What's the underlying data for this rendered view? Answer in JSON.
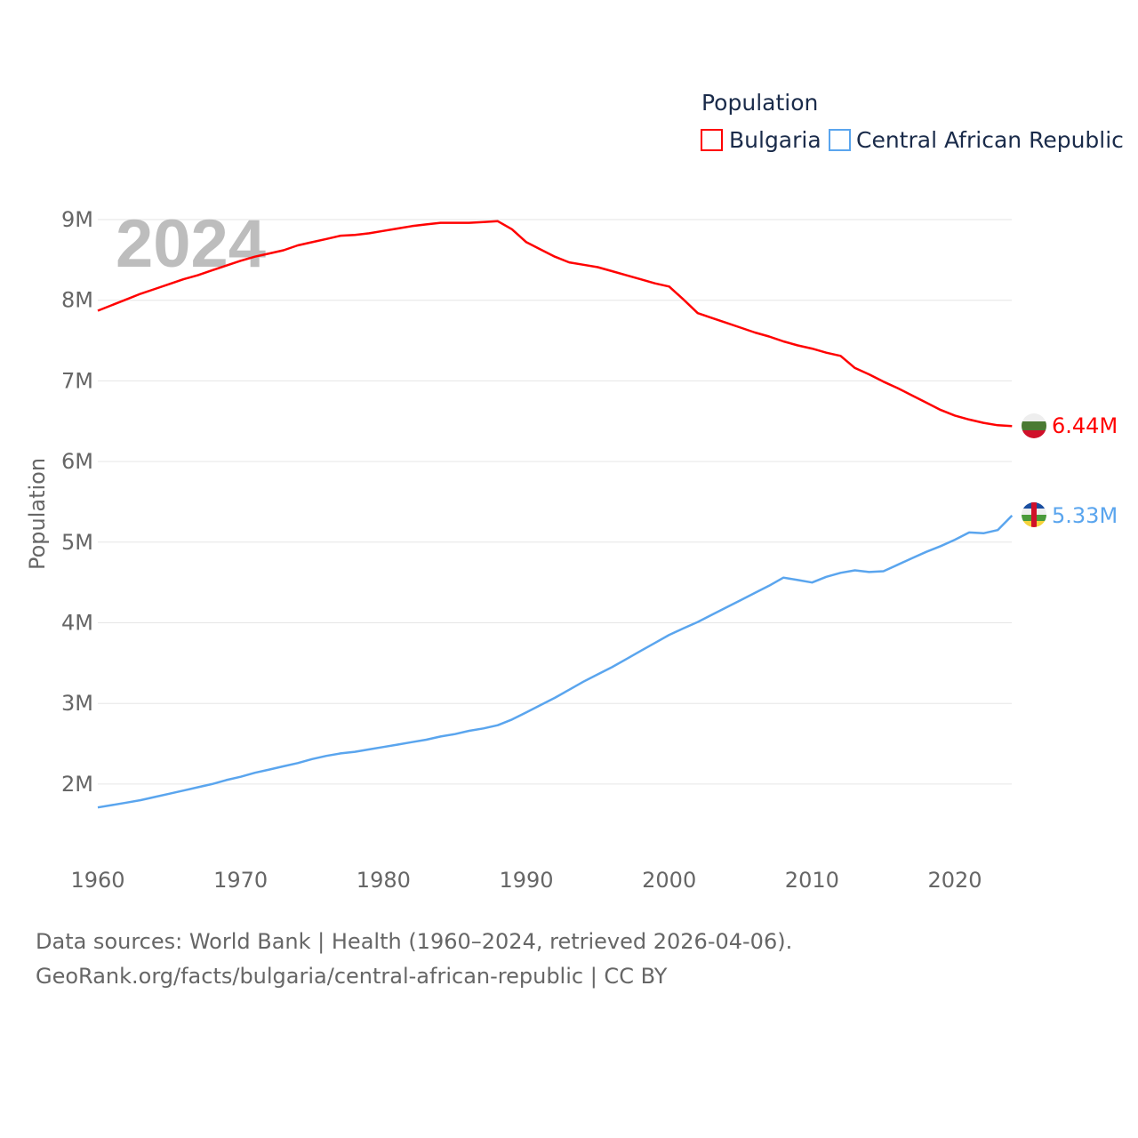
{
  "chart_data": {
    "type": "line",
    "title": "",
    "year_label": "2024",
    "ylabel": "Population",
    "xlabel": "",
    "xlim": [
      1960,
      2024
    ],
    "ylim": [
      1200000,
      9200000
    ],
    "x_ticks": [
      "1960",
      "1970",
      "1980",
      "1990",
      "2000",
      "2010",
      "2020"
    ],
    "y_ticks": [
      "2M",
      "3M",
      "4M",
      "5M",
      "6M",
      "7M",
      "8M",
      "9M"
    ],
    "grid": true,
    "legend": {
      "title": "Population",
      "placement": "top-right"
    },
    "x": [
      1960,
      1961,
      1962,
      1963,
      1964,
      1965,
      1966,
      1967,
      1968,
      1969,
      1970,
      1971,
      1972,
      1973,
      1974,
      1975,
      1976,
      1977,
      1978,
      1979,
      1980,
      1981,
      1982,
      1983,
      1984,
      1985,
      1986,
      1987,
      1988,
      1989,
      1990,
      1991,
      1992,
      1993,
      1994,
      1995,
      1996,
      1997,
      1998,
      1999,
      2000,
      2001,
      2002,
      2003,
      2004,
      2005,
      2006,
      2007,
      2008,
      2009,
      2010,
      2011,
      2012,
      2013,
      2014,
      2015,
      2016,
      2017,
      2018,
      2019,
      2020,
      2021,
      2022,
      2023,
      2024
    ],
    "series": [
      {
        "name": "Bulgaria",
        "color": "#ff0000",
        "end_label": "6.44M",
        "values": [
          7.87,
          7.94,
          8.01,
          8.08,
          8.14,
          8.2,
          8.26,
          8.31,
          8.37,
          8.43,
          8.49,
          8.54,
          8.58,
          8.62,
          8.68,
          8.72,
          8.76,
          8.8,
          8.81,
          8.83,
          8.86,
          8.89,
          8.92,
          8.94,
          8.96,
          8.96,
          8.96,
          8.97,
          8.98,
          8.88,
          8.72,
          8.63,
          8.54,
          8.47,
          8.44,
          8.41,
          8.36,
          8.31,
          8.26,
          8.21,
          8.17,
          8.01,
          7.84,
          7.78,
          7.72,
          7.66,
          7.6,
          7.55,
          7.49,
          7.44,
          7.4,
          7.35,
          7.31,
          7.16,
          7.08,
          6.99,
          6.91,
          6.82,
          6.73,
          6.64,
          6.57,
          6.52,
          6.48,
          6.45,
          6.44
        ]
      },
      {
        "name": "Central African Republic",
        "color": "#5aa5ee",
        "end_label": "5.33M",
        "values": [
          1.71,
          1.74,
          1.77,
          1.8,
          1.84,
          1.88,
          1.92,
          1.96,
          2.0,
          2.05,
          2.09,
          2.14,
          2.18,
          2.22,
          2.26,
          2.31,
          2.35,
          2.38,
          2.4,
          2.43,
          2.46,
          2.49,
          2.52,
          2.55,
          2.59,
          2.62,
          2.66,
          2.69,
          2.73,
          2.8,
          2.89,
          2.98,
          3.07,
          3.17,
          3.27,
          3.36,
          3.45,
          3.55,
          3.65,
          3.75,
          3.85,
          3.93,
          4.01,
          4.1,
          4.19,
          4.28,
          4.37,
          4.46,
          4.56,
          4.53,
          4.5,
          4.57,
          4.62,
          4.65,
          4.63,
          4.64,
          4.72,
          4.8,
          4.88,
          4.95,
          5.03,
          5.12,
          5.11,
          5.15,
          5.33
        ]
      }
    ],
    "value_unit": "millions"
  },
  "footer": {
    "line1": "Data sources: World Bank | Health (1960–2024, retrieved 2026-04-06).",
    "line2": "GeoRank.org/facts/bulgaria/central-african-republic | CC BY"
  }
}
